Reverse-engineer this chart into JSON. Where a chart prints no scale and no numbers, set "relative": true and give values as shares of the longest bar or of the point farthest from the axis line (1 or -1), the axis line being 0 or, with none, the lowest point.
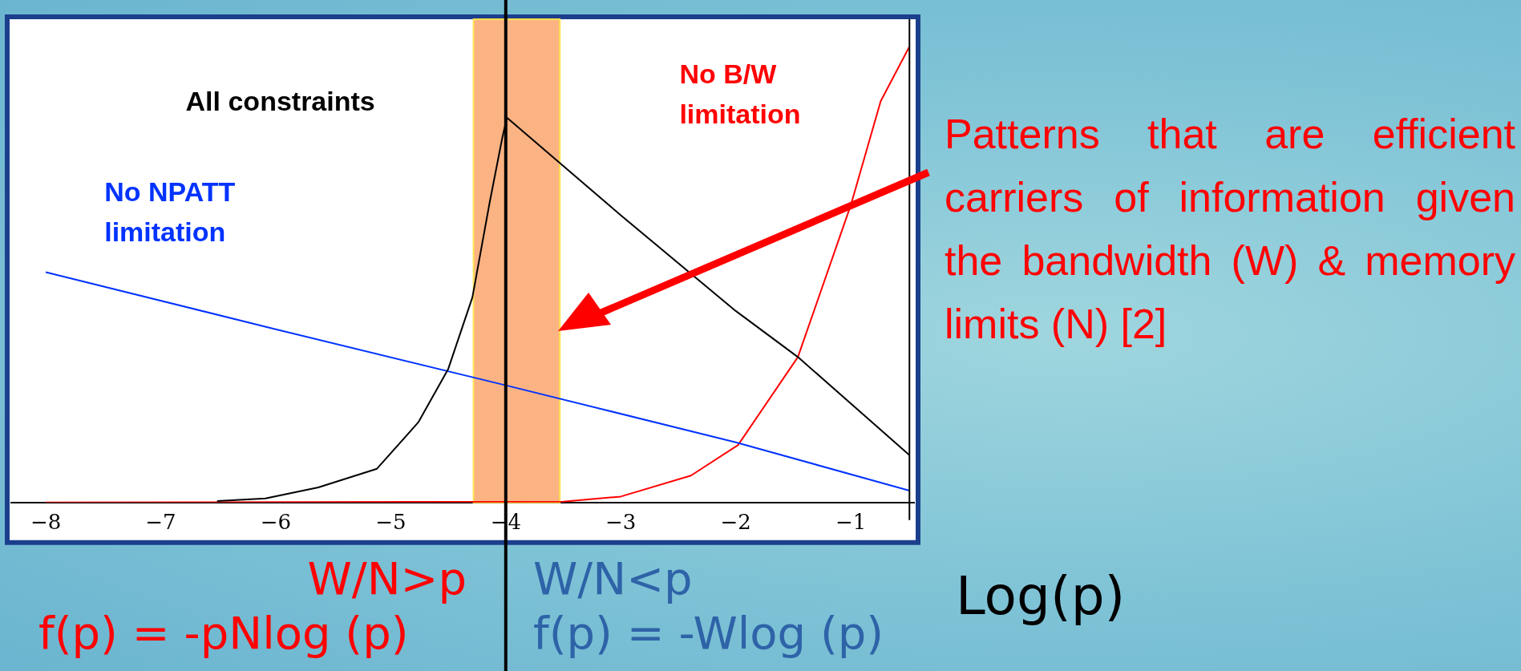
{
  "chart_data": {
    "type": "line",
    "relative": true,
    "xlabel": "Log(p)",
    "xlim": [
      -8.3,
      -0.45
    ],
    "xticks": [
      -8,
      -7,
      -6,
      -5,
      -4,
      -3,
      -2,
      -1
    ],
    "legend": false,
    "grid": false,
    "marker": "none",
    "line_style": "solid",
    "series": [
      {
        "name": "All constraints",
        "color": "#000000",
        "x": [
          -6.51,
          -6.09,
          -5.63,
          -5.12,
          -4.76,
          -4.5,
          -4.29,
          -4.14,
          -4.03,
          -3.99,
          -3,
          -2,
          -1.46,
          -0.49
        ],
        "values": [
          0.003,
          0.009,
          0.033,
          0.074,
          0.176,
          0.293,
          0.45,
          0.658,
          0.8,
          0.844,
          0.63,
          0.42,
          0.319,
          0.104
        ]
      },
      {
        "name": "No NPATT limitation",
        "color": "#0033ff",
        "x": [
          -8,
          -6,
          -4,
          -2,
          -0.49
        ],
        "values": [
          0.505,
          0.38,
          0.257,
          0.132,
          0.026
        ]
      },
      {
        "name": "No B/W limitation",
        "color": "#ff0000",
        "x": [
          -8,
          -3.5,
          -3,
          -2.39,
          -1.98,
          -1.46,
          -1,
          -0.74,
          -0.49
        ],
        "values": [
          0,
          0.002,
          0.013,
          0.059,
          0.126,
          0.319,
          0.652,
          0.88,
          1
        ]
      }
    ],
    "bands": [
      {
        "axis": "x",
        "from": -4.28,
        "to": -3.53,
        "color": "#fbb383"
      }
    ],
    "ref_lines": [
      {
        "axis": "x",
        "value": -4,
        "color": "#000000"
      },
      {
        "axis": "x",
        "value": -0.49,
        "color": "#000000"
      }
    ],
    "annotations": [
      "Patterns that are efficient carriers of information given the bandwidth (W) & memory limits (N) [2]",
      "W/N>p",
      "f(p) = -pNlog (p)",
      "W/N<p",
      "f(p) = -Wlog (p)"
    ]
  }
}
